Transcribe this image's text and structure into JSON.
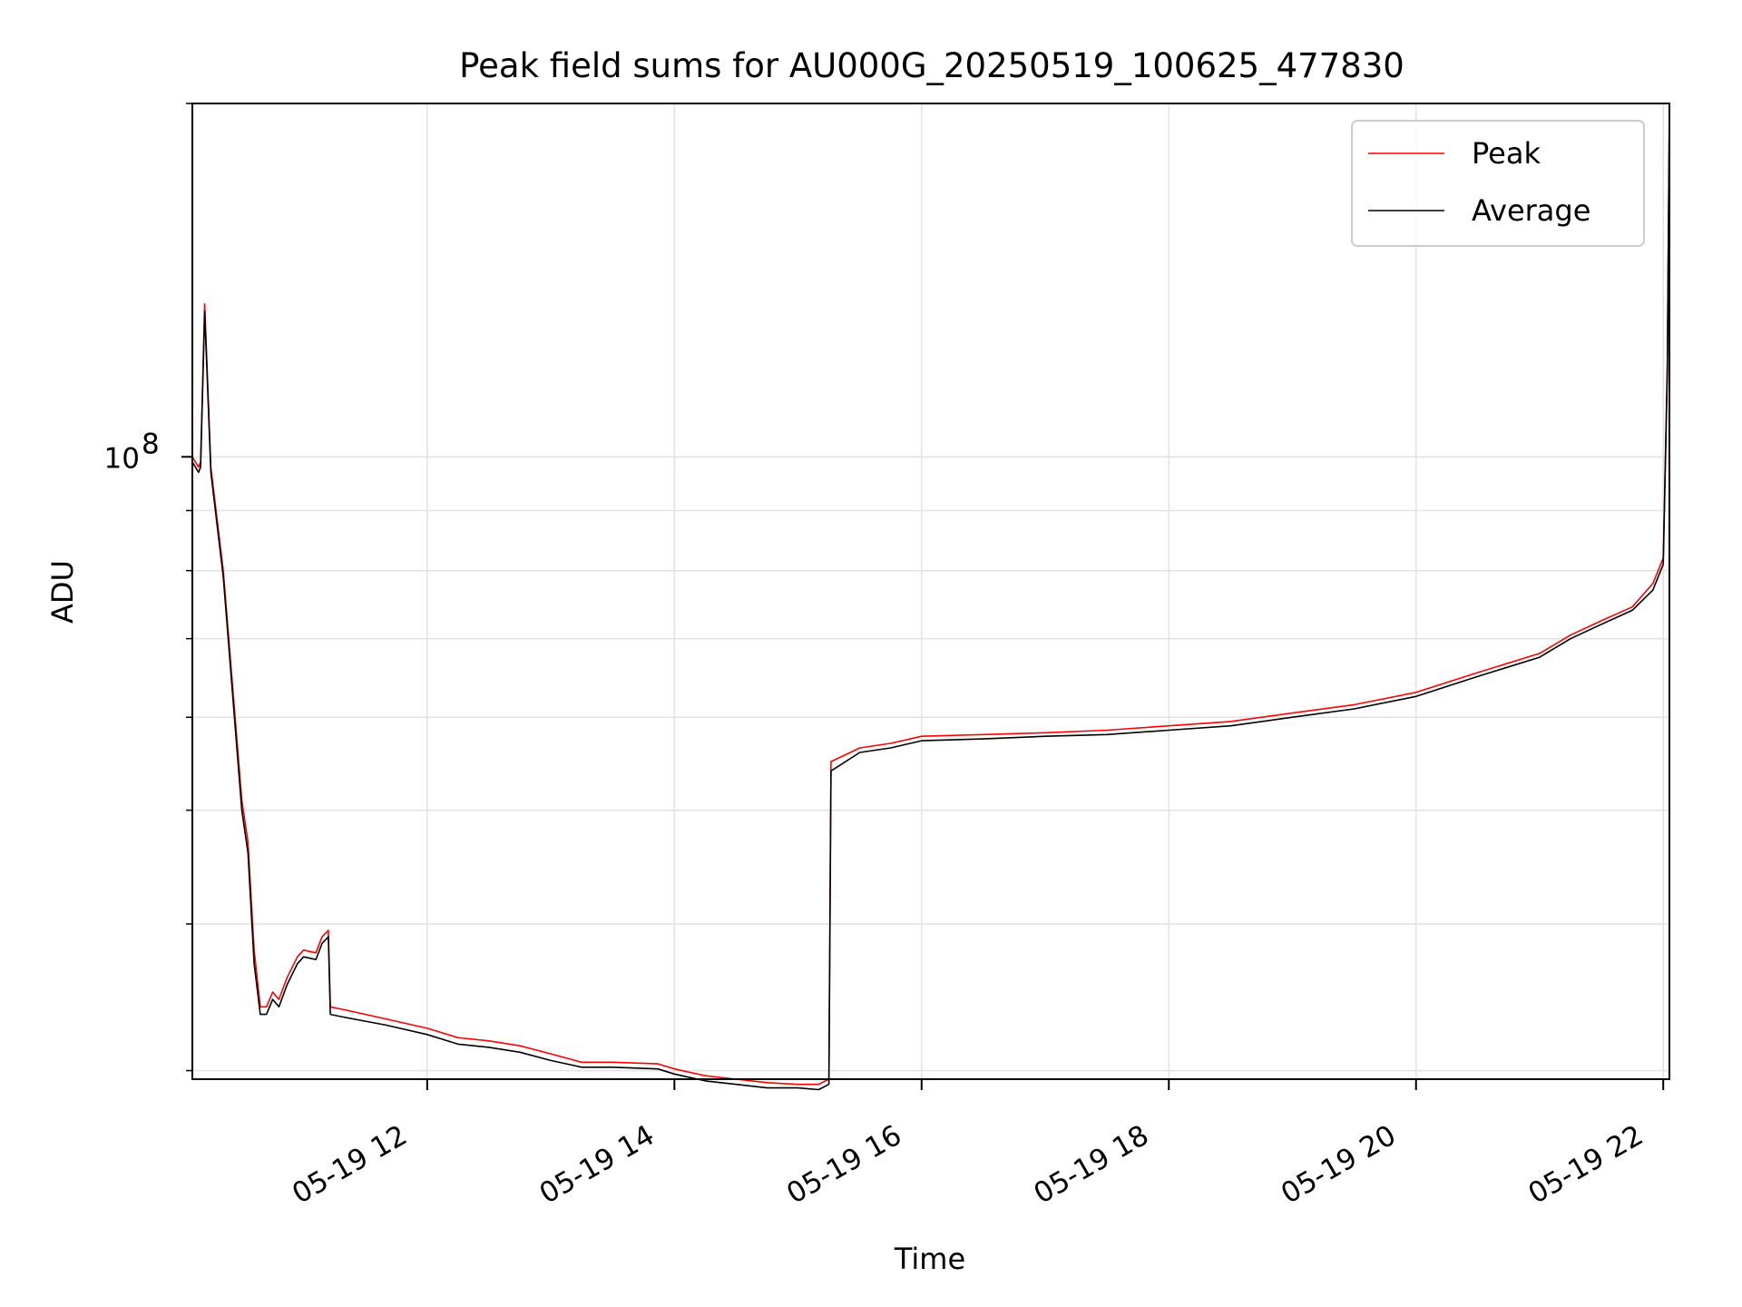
{
  "chart_data": {
    "type": "line",
    "title": "Peak field sums for AU000G_20250519_100625_477830",
    "xlabel": "Time",
    "ylabel": "ADU",
    "y_scale": "log",
    "xlim": [
      "05-19 10:06",
      "05-19 22:03"
    ],
    "ylim": [
      29500000.0,
      200000000.0
    ],
    "x_ticks": [
      {
        "t": "05-19 12:00",
        "label": "05-19 12"
      },
      {
        "t": "05-19 14:00",
        "label": "05-19 14"
      },
      {
        "t": "05-19 16:00",
        "label": "05-19 16"
      },
      {
        "t": "05-19 18:00",
        "label": "05-19 18"
      },
      {
        "t": "05-19 20:00",
        "label": "05-19 20"
      },
      {
        "t": "05-19 22:00",
        "label": "05-19 22"
      }
    ],
    "y_ticks": [
      {
        "value": 100000000,
        "label": "10",
        "exp": "8"
      }
    ],
    "grid": true,
    "legend_position": "top-right",
    "series": [
      {
        "name": "Peak",
        "color": "#ff0000",
        "x": [
          "05-19 10:06",
          "05-19 10:09",
          "05-19 10:10",
          "05-19 10:12",
          "05-19 10:15",
          "05-19 10:21",
          "05-19 10:30",
          "05-19 10:33",
          "05-19 10:36",
          "05-19 10:39",
          "05-19 10:42",
          "05-19 10:45",
          "05-19 10:48",
          "05-19 10:52",
          "05-19 10:57",
          "05-19 11:00",
          "05-19 11:06",
          "05-19 11:09",
          "05-19 11:12",
          "05-19 11:13",
          "05-19 11:20",
          "05-19 11:40",
          "05-19 12:00",
          "05-19 12:15",
          "05-19 12:30",
          "05-19 12:45",
          "05-19 13:00",
          "05-19 13:15",
          "05-19 13:30",
          "05-19 13:52",
          "05-19 14:00",
          "05-19 14:15",
          "05-19 14:30",
          "05-19 14:45",
          "05-19 15:00",
          "05-19 15:10",
          "05-19 15:15",
          "05-19 15:16",
          "05-19 15:30",
          "05-19 15:45",
          "05-19 16:00",
          "05-19 16:30",
          "05-19 17:00",
          "05-19 17:30",
          "05-19 18:00",
          "05-19 18:30",
          "05-19 19:00",
          "05-19 19:30",
          "05-19 20:00",
          "05-19 20:30",
          "05-19 21:00",
          "05-19 21:15",
          "05-19 21:30",
          "05-19 21:45",
          "05-19 21:55",
          "05-19 22:00",
          "05-19 22:02",
          "05-19 22:03"
        ],
        "y": [
          100000000,
          98000000,
          99000000,
          135000000,
          98000000,
          80000000,
          51000000,
          47000000,
          38000000,
          34000000,
          34000000,
          35000000,
          34500000,
          36000000,
          37500000,
          38000000,
          37800000,
          39000000,
          39500000,
          34000000,
          33800000,
          33200000,
          32600000,
          32000000,
          31800000,
          31500000,
          31000000,
          30500000,
          30500000,
          30400000,
          30100000,
          29700000,
          29500000,
          29300000,
          29200000,
          29200000,
          29500000,
          55000000,
          56500000,
          57000000,
          57800000,
          58000000,
          58200000,
          58500000,
          59000000,
          59500000,
          60500000,
          61500000,
          63000000,
          65500000,
          68000000,
          70500000,
          72500000,
          74500000,
          78000000,
          82000000,
          120000000,
          200000000
        ]
      },
      {
        "name": "Average",
        "color": "#000000",
        "x": [
          "05-19 10:06",
          "05-19 10:09",
          "05-19 10:10",
          "05-19 10:12",
          "05-19 10:15",
          "05-19 10:21",
          "05-19 10:30",
          "05-19 10:33",
          "05-19 10:36",
          "05-19 10:39",
          "05-19 10:42",
          "05-19 10:45",
          "05-19 10:48",
          "05-19 10:52",
          "05-19 10:57",
          "05-19 11:00",
          "05-19 11:06",
          "05-19 11:09",
          "05-19 11:12",
          "05-19 11:13",
          "05-19 11:20",
          "05-19 11:40",
          "05-19 12:00",
          "05-19 12:15",
          "05-19 12:30",
          "05-19 12:45",
          "05-19 13:00",
          "05-19 13:15",
          "05-19 13:30",
          "05-19 13:52",
          "05-19 14:00",
          "05-19 14:15",
          "05-19 14:30",
          "05-19 14:45",
          "05-19 15:00",
          "05-19 15:10",
          "05-19 15:15",
          "05-19 15:16",
          "05-19 15:30",
          "05-19 15:45",
          "05-19 16:00",
          "05-19 16:30",
          "05-19 17:00",
          "05-19 17:30",
          "05-19 18:00",
          "05-19 18:30",
          "05-19 19:00",
          "05-19 19:30",
          "05-19 20:00",
          "05-19 20:30",
          "05-19 21:00",
          "05-19 21:15",
          "05-19 21:30",
          "05-19 21:45",
          "05-19 21:55",
          "05-19 22:00",
          "05-19 22:02",
          "05-19 22:03"
        ],
        "y": [
          99000000,
          97000000,
          98000000,
          133000000,
          97000000,
          79000000,
          50000000,
          46000000,
          37000000,
          33500000,
          33500000,
          34500000,
          34000000,
          35500000,
          37000000,
          37500000,
          37300000,
          38500000,
          39000000,
          33500000,
          33300000,
          32800000,
          32200000,
          31600000,
          31400000,
          31100000,
          30600000,
          30200000,
          30200000,
          30100000,
          29800000,
          29400000,
          29200000,
          29000000,
          29000000,
          28900000,
          29200000,
          54000000,
          56000000,
          56500000,
          57300000,
          57500000,
          57800000,
          58000000,
          58500000,
          59000000,
          60000000,
          61000000,
          62500000,
          65000000,
          67500000,
          70000000,
          72000000,
          74000000,
          77000000,
          81000000,
          118000000,
          198000000
        ]
      }
    ]
  }
}
